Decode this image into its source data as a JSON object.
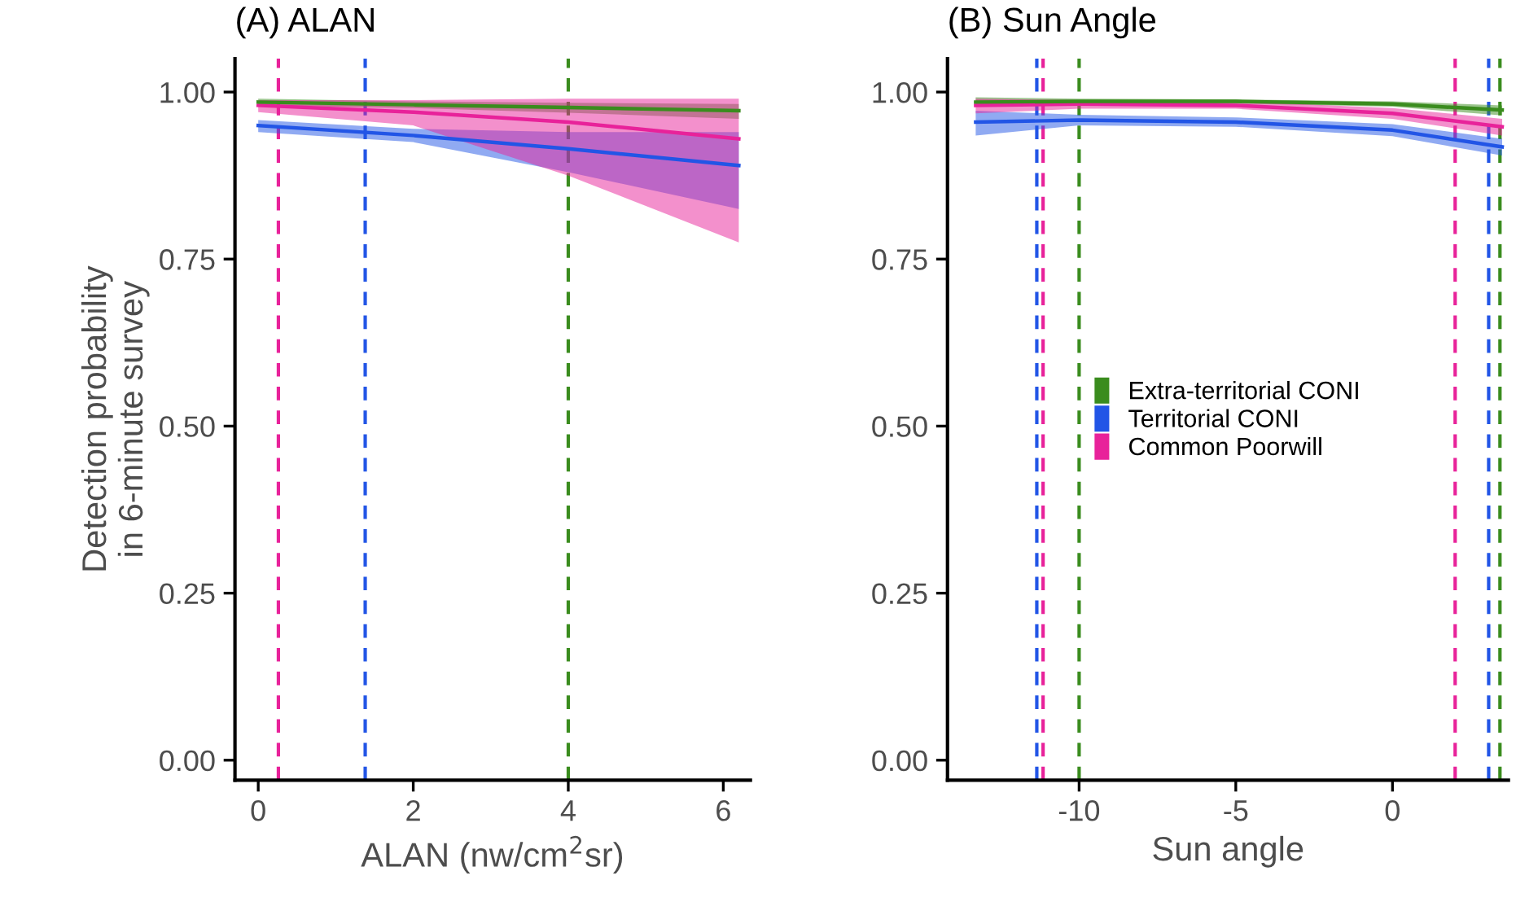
{
  "chart_data": [
    {
      "type": "line",
      "title": "(A) ALAN",
      "xlabel": "ALAN (nw/cm$^{2}$sr)",
      "ylabel": "Detection probability\nin 6-minute survey",
      "xlim": [
        -0.3,
        6.35
      ],
      "xticks": [
        0,
        2,
        4,
        6
      ],
      "ylim": [
        -0.03,
        1.05
      ],
      "yticks": [
        {
          "value": 0,
          "label": "0.00"
        },
        {
          "value": 0.25,
          "label": "0.25"
        },
        {
          "value": 0.5,
          "label": "0.50"
        },
        {
          "value": 0.75,
          "label": "0.75"
        },
        {
          "value": 1,
          "label": "1.00"
        }
      ],
      "grid": false,
      "legend": false,
      "series": [
        {
          "color": "#3a8c1e",
          "x": [
            0,
            2,
            4,
            6.2
          ],
          "values": [
            0.985,
            0.981,
            0.977,
            0.972
          ],
          "lower": [
            0.98,
            0.976,
            0.969,
            0.96
          ],
          "upper": [
            0.99,
            0.986,
            0.984,
            0.982
          ]
        },
        {
          "color": "#2255e6",
          "x": [
            0,
            2,
            4,
            6.2
          ],
          "values": [
            0.95,
            0.935,
            0.915,
            0.89
          ],
          "lower": [
            0.94,
            0.925,
            0.88,
            0.825
          ],
          "upper": [
            0.958,
            0.945,
            0.94,
            0.94
          ]
        },
        {
          "color": "#e8229a",
          "x": [
            0,
            2,
            4,
            6.2
          ],
          "values": [
            0.98,
            0.97,
            0.955,
            0.93
          ],
          "lower": [
            0.97,
            0.95,
            0.875,
            0.775
          ],
          "upper": [
            0.988,
            0.988,
            0.99,
            0.99
          ]
        }
      ],
      "ref_lines": [
        {
          "axis": "x",
          "value": 0.26,
          "color": "#e8229a",
          "line_style": "dashed"
        },
        {
          "axis": "x",
          "value": 1.38,
          "color": "#2255e6",
          "line_style": "dashed"
        },
        {
          "axis": "x",
          "value": 4.0,
          "color": "#3a8c1e",
          "line_style": "dashed"
        }
      ]
    },
    {
      "type": "line",
      "title": "(B) Sun Angle",
      "xlabel": "Sun angle",
      "xlim": [
        -14.2,
        3.7
      ],
      "xticks": [
        {
          "value": -10,
          "label": "-10"
        },
        {
          "value": -5,
          "label": "-5"
        },
        0
      ],
      "ylim": [
        -0.03,
        1.05
      ],
      "yticks": [
        {
          "value": 0,
          "label": "0.00"
        },
        {
          "value": 0.25,
          "label": "0.25"
        },
        {
          "value": 0.5,
          "label": "0.50"
        },
        {
          "value": 0.75,
          "label": "0.75"
        },
        {
          "value": 1,
          "label": "1.00"
        }
      ],
      "grid": false,
      "legend": "center",
      "series": [
        {
          "name": "Extra-territorial CONI",
          "color": "#3a8c1e",
          "x": [
            -13.3,
            -10,
            -5,
            0,
            3.5
          ],
          "values": [
            0.985,
            0.986,
            0.986,
            0.982,
            0.973
          ],
          "lower": [
            0.978,
            0.982,
            0.983,
            0.978,
            0.965
          ],
          "upper": [
            0.992,
            0.99,
            0.989,
            0.986,
            0.98
          ]
        },
        {
          "name": "Territorial CONI",
          "color": "#2255e6",
          "x": [
            -13.3,
            -10,
            -5,
            0,
            3.5
          ],
          "values": [
            0.955,
            0.958,
            0.955,
            0.943,
            0.918
          ],
          "lower": [
            0.935,
            0.95,
            0.948,
            0.934,
            0.905
          ],
          "upper": [
            0.972,
            0.966,
            0.962,
            0.952,
            0.93
          ]
        },
        {
          "name": "Common Poorwill",
          "color": "#e8229a",
          "x": [
            -13.3,
            -10,
            -5,
            0,
            3.5
          ],
          "values": [
            0.98,
            0.982,
            0.98,
            0.968,
            0.948
          ],
          "lower": [
            0.968,
            0.975,
            0.975,
            0.96,
            0.935
          ],
          "upper": [
            0.99,
            0.988,
            0.986,
            0.976,
            0.96
          ]
        }
      ],
      "ref_lines": [
        {
          "axis": "x",
          "value": -11.35,
          "color": "#2255e6",
          "line_style": "dashed"
        },
        {
          "axis": "x",
          "value": -11.15,
          "color": "#e8229a",
          "line_style": "dashed"
        },
        {
          "axis": "x",
          "value": -10.0,
          "color": "#3a8c1e",
          "line_style": "dashed"
        },
        {
          "axis": "x",
          "value": 2.0,
          "color": "#e8229a",
          "line_style": "dashed"
        },
        {
          "axis": "x",
          "value": 3.07,
          "color": "#2255e6",
          "line_style": "dashed"
        },
        {
          "axis": "x",
          "value": 3.43,
          "color": "#3a8c1e",
          "line_style": "dashed"
        }
      ]
    }
  ]
}
